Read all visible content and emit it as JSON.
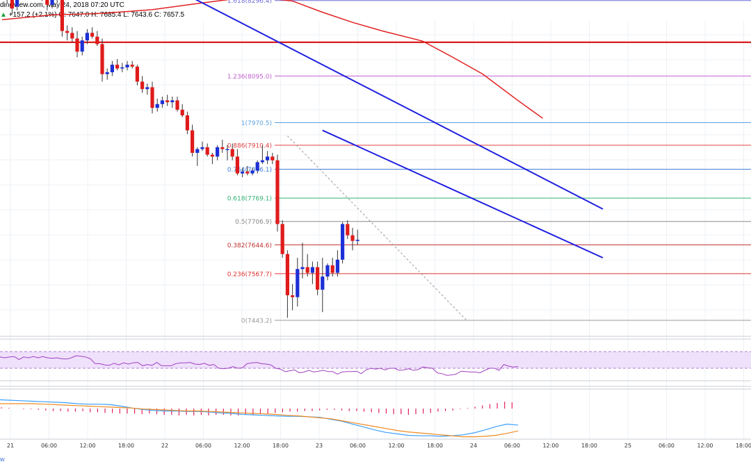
{
  "header": {
    "line1": "dingView.com, May 24, 2018 07:20 UTC",
    "change_icon": "triangle-up-icon",
    "change": "+157.2 (+2.1%)",
    "ohlc": "O: 7647.0  H: 7685.4  L: 7643.6  C: 7657.5"
  },
  "footer_fragment": "w",
  "colors": {
    "bull": "#1d2fd6",
    "bear": "#e01b1b",
    "trendline": "#2020e0",
    "ma": "#e02020",
    "resistance": "#d81010",
    "rsi_line": "#a040c0",
    "rsi_band": "#efe0fb",
    "macd_fast": "#3aa0ff",
    "macd_slow": "#f08a20",
    "macd_hist": "#e0205a"
  },
  "chart_data": [
    {
      "type": "candlestick",
      "symbol_price_axis": "BTC/USD",
      "x_ticks": [
        "21",
        "06:00",
        "12:00",
        "18:00",
        "22",
        "06:00",
        "12:00",
        "18:00",
        "23",
        "06:00",
        "12:00",
        "18:00",
        "24",
        "06:00",
        "12:00",
        "18:00",
        "25",
        "06:00",
        "12:00",
        "18:00"
      ],
      "fibonacci": [
        {
          "label": "1.618(8296.4)",
          "value": 8296.4,
          "color": "#6b6bd8"
        },
        {
          "label": "1.236(8095.0)",
          "value": 8095.0,
          "color": "#c060d0"
        },
        {
          "label": "1(7970.5)",
          "value": 7970.5,
          "color": "#5aa0e0"
        },
        {
          "label": "0.886(7910.4)",
          "value": 7910.4,
          "color": "#e04040"
        },
        {
          "label": "0.764(7846.1)",
          "value": 7846.1,
          "color": "#3a7ad8"
        },
        {
          "label": "0.618(7769.1)",
          "value": 7769.1,
          "color": "#30b070"
        },
        {
          "label": "0.5(7706.9)",
          "value": 7706.9,
          "color": "#888888"
        },
        {
          "label": "0.382(7644.6)",
          "value": 7644.6,
          "color": "#c03030"
        },
        {
          "label": "0.236(7567.7)",
          "value": 7567.7,
          "color": "#e03030"
        },
        {
          "label": "0(7443.2)",
          "value": 7443.2,
          "color": "#999999"
        }
      ],
      "horizontal_resistance": 8185,
      "candles": [
        {
          "o": 8330,
          "h": 8360,
          "l": 8300,
          "c": 8315
        },
        {
          "o": 8320,
          "h": 8350,
          "l": 8290,
          "c": 8300
        },
        {
          "o": 8310,
          "h": 8330,
          "l": 8260,
          "c": 8275
        },
        {
          "o": 8280,
          "h": 8320,
          "l": 8270,
          "c": 8305
        },
        {
          "o": 8305,
          "h": 8340,
          "l": 8300,
          "c": 8320
        },
        {
          "o": 8320,
          "h": 8345,
          "l": 8305,
          "c": 8315
        },
        {
          "o": 8315,
          "h": 8360,
          "l": 8310,
          "c": 8350
        },
        {
          "o": 8350,
          "h": 8370,
          "l": 8320,
          "c": 8330
        },
        {
          "o": 8330,
          "h": 8340,
          "l": 8295,
          "c": 8300
        },
        {
          "o": 8300,
          "h": 8310,
          "l": 8270,
          "c": 8285
        },
        {
          "o": 8285,
          "h": 8310,
          "l": 8275,
          "c": 8300
        },
        {
          "o": 8300,
          "h": 8320,
          "l": 8290,
          "c": 8310
        },
        {
          "o": 8310,
          "h": 8320,
          "l": 8200,
          "c": 8215
        },
        {
          "o": 8215,
          "h": 8230,
          "l": 8190,
          "c": 8210
        },
        {
          "o": 8210,
          "h": 8225,
          "l": 8185,
          "c": 8195
        },
        {
          "o": 8195,
          "h": 8215,
          "l": 8145,
          "c": 8160
        },
        {
          "o": 8160,
          "h": 8200,
          "l": 8150,
          "c": 8190
        },
        {
          "o": 8190,
          "h": 8220,
          "l": 8180,
          "c": 8210
        },
        {
          "o": 8210,
          "h": 8225,
          "l": 8195,
          "c": 8200
        },
        {
          "o": 8200,
          "h": 8215,
          "l": 8175,
          "c": 8180
        },
        {
          "o": 8180,
          "h": 8195,
          "l": 8080,
          "c": 8100
        },
        {
          "o": 8100,
          "h": 8115,
          "l": 8085,
          "c": 8105
        },
        {
          "o": 8105,
          "h": 8135,
          "l": 8095,
          "c": 8125
        },
        {
          "o": 8125,
          "h": 8140,
          "l": 8110,
          "c": 8115
        },
        {
          "o": 8115,
          "h": 8130,
          "l": 8105,
          "c": 8118
        },
        {
          "o": 8118,
          "h": 8135,
          "l": 8110,
          "c": 8125
        },
        {
          "o": 8125,
          "h": 8135,
          "l": 8115,
          "c": 8120
        },
        {
          "o": 8120,
          "h": 8125,
          "l": 8070,
          "c": 8080
        },
        {
          "o": 8080,
          "h": 8095,
          "l": 8050,
          "c": 8060
        },
        {
          "o": 8060,
          "h": 8075,
          "l": 8045,
          "c": 8065
        },
        {
          "o": 8065,
          "h": 8080,
          "l": 7995,
          "c": 8010
        },
        {
          "o": 8010,
          "h": 8035,
          "l": 8000,
          "c": 8020
        },
        {
          "o": 8020,
          "h": 8040,
          "l": 8010,
          "c": 8030
        },
        {
          "o": 8030,
          "h": 8045,
          "l": 8015,
          "c": 8025
        },
        {
          "o": 8025,
          "h": 8040,
          "l": 8010,
          "c": 8030
        },
        {
          "o": 8030,
          "h": 8040,
          "l": 8000,
          "c": 8005
        },
        {
          "o": 8005,
          "h": 8020,
          "l": 7985,
          "c": 7990
        },
        {
          "o": 7990,
          "h": 8000,
          "l": 7940,
          "c": 7950
        },
        {
          "o": 7950,
          "h": 7965,
          "l": 7880,
          "c": 7890
        },
        {
          "o": 7890,
          "h": 7905,
          "l": 7855,
          "c": 7900
        },
        {
          "o": 7900,
          "h": 7920,
          "l": 7895,
          "c": 7905
        },
        {
          "o": 7905,
          "h": 7915,
          "l": 7880,
          "c": 7885
        },
        {
          "o": 7885,
          "h": 7890,
          "l": 7860,
          "c": 7880
        },
        {
          "o": 7880,
          "h": 7910,
          "l": 7870,
          "c": 7905
        },
        {
          "o": 7905,
          "h": 7925,
          "l": 7890,
          "c": 7900
        },
        {
          "o": 7900,
          "h": 7910,
          "l": 7870,
          "c": 7900
        },
        {
          "o": 7900,
          "h": 7915,
          "l": 7870,
          "c": 7880
        },
        {
          "o": 7880,
          "h": 7900,
          "l": 7830,
          "c": 7835
        },
        {
          "o": 7835,
          "h": 7850,
          "l": 7825,
          "c": 7840
        },
        {
          "o": 7840,
          "h": 7855,
          "l": 7830,
          "c": 7835
        },
        {
          "o": 7835,
          "h": 7850,
          "l": 7830,
          "c": 7843
        },
        {
          "o": 7843,
          "h": 7870,
          "l": 7835,
          "c": 7865
        },
        {
          "o": 7865,
          "h": 7910,
          "l": 7860,
          "c": 7870
        },
        {
          "o": 7870,
          "h": 7895,
          "l": 7860,
          "c": 7880
        },
        {
          "o": 7880,
          "h": 7890,
          "l": 7860,
          "c": 7870
        },
        {
          "o": 7870,
          "h": 7885,
          "l": 7680,
          "c": 7700
        },
        {
          "o": 7700,
          "h": 7710,
          "l": 7610,
          "c": 7620
        },
        {
          "o": 7620,
          "h": 7630,
          "l": 7450,
          "c": 7510
        },
        {
          "o": 7510,
          "h": 7540,
          "l": 7470,
          "c": 7505
        },
        {
          "o": 7505,
          "h": 7610,
          "l": 7480,
          "c": 7580
        },
        {
          "o": 7580,
          "h": 7650,
          "l": 7555,
          "c": 7585
        },
        {
          "o": 7585,
          "h": 7620,
          "l": 7560,
          "c": 7570
        },
        {
          "o": 7570,
          "h": 7600,
          "l": 7540,
          "c": 7585
        },
        {
          "o": 7585,
          "h": 7600,
          "l": 7510,
          "c": 7525
        },
        {
          "o": 7525,
          "h": 7610,
          "l": 7465,
          "c": 7560
        },
        {
          "o": 7560,
          "h": 7595,
          "l": 7550,
          "c": 7590
        },
        {
          "o": 7590,
          "h": 7610,
          "l": 7560,
          "c": 7570
        },
        {
          "o": 7570,
          "h": 7630,
          "l": 7560,
          "c": 7605
        },
        {
          "o": 7605,
          "h": 7705,
          "l": 7595,
          "c": 7700
        },
        {
          "o": 7700,
          "h": 7710,
          "l": 7660,
          "c": 7670
        },
        {
          "o": 7670,
          "h": 7690,
          "l": 7630,
          "c": 7655
        },
        {
          "o": 7655,
          "h": 7685,
          "l": 7644,
          "c": 7658
        }
      ],
      "moving_average": [
        {
          "i": 0,
          "v": 8245
        },
        {
          "i": 10,
          "v": 8258
        },
        {
          "i": 20,
          "v": 8262
        },
        {
          "i": 30,
          "v": 8272
        },
        {
          "i": 40,
          "v": 8290
        },
        {
          "i": 46,
          "v": 8300
        },
        {
          "i": 52,
          "v": 8304
        },
        {
          "i": 58,
          "v": 8295
        },
        {
          "i": 64,
          "v": 8265
        },
        {
          "i": 70,
          "v": 8238
        },
        {
          "i": 76,
          "v": 8215
        },
        {
          "i": 84,
          "v": 8188
        },
        {
          "i": 90,
          "v": 8145
        },
        {
          "i": 96,
          "v": 8100
        },
        {
          "i": 103,
          "v": 8030
        },
        {
          "i": 108,
          "v": 7982
        }
      ],
      "trendlines": [
        {
          "i1": 8,
          "v1": 8510,
          "i2": 120,
          "v2": 7740
        },
        {
          "i1": 64,
          "v1": 7950,
          "i2": 120,
          "v2": 7610
        }
      ],
      "dashed_fib_line": {
        "i1": 57,
        "v1": 7935,
        "i2": 93,
        "v2": 7440
      }
    },
    {
      "type": "line",
      "name": "RSI",
      "ylim": [
        0,
        100
      ],
      "band": [
        30,
        70
      ],
      "values": [
        57,
        55,
        57,
        58,
        51,
        57,
        55,
        58,
        55,
        58,
        55,
        54,
        55,
        53,
        52,
        55,
        60,
        59,
        57,
        53,
        41,
        41,
        38,
        37,
        42,
        38,
        43,
        40,
        43,
        44,
        36,
        39,
        37,
        44,
        36,
        36,
        36,
        41,
        43,
        43,
        44,
        40,
        39,
        42,
        37,
        39,
        30,
        29,
        30,
        34,
        30,
        31,
        41,
        43,
        44,
        41,
        40,
        38,
        30,
        28,
        22,
        24,
        26,
        19,
        21,
        25,
        21,
        23,
        25,
        22,
        22,
        16,
        21,
        22,
        22,
        23,
        17,
        26,
        30,
        28,
        30,
        26,
        30,
        30,
        25,
        26,
        29,
        25,
        27,
        33,
        31,
        30,
        19,
        17,
        13,
        14,
        16,
        23,
        22,
        21,
        21,
        19,
        25,
        30,
        30,
        25,
        39,
        35,
        33,
        34
      ]
    },
    {
      "type": "line",
      "name": "MACD",
      "series": [
        {
          "name": "macd",
          "values": [
            18,
            17,
            16,
            15,
            14,
            13,
            12,
            10,
            9,
            9,
            8,
            5,
            1,
            -2,
            -4,
            -5,
            -5,
            -6,
            -6,
            -7,
            -9,
            -10,
            -12,
            -13,
            -14,
            -15,
            -16,
            -16,
            -17,
            -18,
            -22,
            -26,
            -32,
            -38,
            -44,
            -49,
            -52,
            -55,
            -56,
            -56,
            -57,
            -56,
            -54,
            -50,
            -44,
            -37,
            -32,
            -34
          ]
        },
        {
          "name": "signal",
          "values": [
            10,
            10,
            10,
            10,
            9,
            8,
            7,
            6,
            5,
            4,
            3,
            2,
            1,
            -1,
            -2,
            -3,
            -4,
            -5,
            -5,
            -6,
            -7,
            -8,
            -9,
            -10,
            -11,
            -12,
            -14,
            -15,
            -17,
            -19,
            -21,
            -25,
            -29,
            -33,
            -37,
            -41,
            -45,
            -48,
            -50,
            -52,
            -54,
            -56,
            -58,
            -58,
            -57,
            -55,
            -51,
            -46
          ]
        }
      ],
      "histogram": [
        2,
        1,
        0,
        -1,
        -1,
        -2,
        -3,
        -4,
        -4,
        -5,
        -5,
        -4,
        -6,
        -6,
        -7,
        -7,
        -8,
        -8,
        -8,
        -9,
        -8,
        -9,
        -10,
        -10,
        -11,
        -10,
        -11,
        -10,
        -11,
        -10,
        -10,
        -11,
        -11,
        -10,
        -10,
        -9,
        -8,
        -7,
        -6,
        -5,
        -5,
        -4,
        -4,
        -3,
        -2,
        -2,
        -3,
        -4,
        -4,
        -5,
        -6,
        -7,
        -8,
        -9,
        -9,
        -10,
        -9,
        -8,
        -7,
        -5,
        -4,
        -3,
        -1,
        1,
        3,
        5,
        7,
        9,
        11,
        10
      ]
    }
  ]
}
